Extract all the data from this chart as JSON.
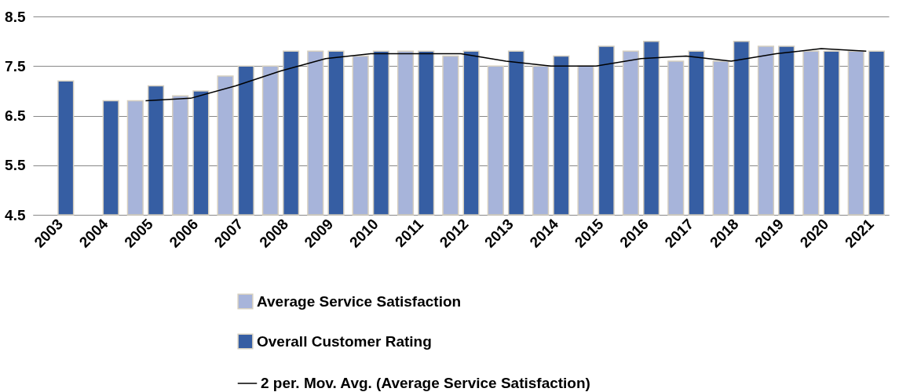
{
  "chart_data": {
    "type": "bar",
    "categories": [
      "2003",
      "2004",
      "2005",
      "2006",
      "2007",
      "2008",
      "2009",
      "2010",
      "2011",
      "2012",
      "2013",
      "2014",
      "2015",
      "2016",
      "2017",
      "2018",
      "2019",
      "2020",
      "2021"
    ],
    "series": [
      {
        "name": "Average Service Satisfaction",
        "color": "#a7b4da",
        "values": [
          null,
          null,
          6.8,
          6.9,
          7.3,
          7.5,
          7.8,
          7.7,
          7.8,
          7.7,
          7.5,
          7.5,
          7.5,
          7.8,
          7.6,
          7.6,
          7.9,
          7.8,
          7.8
        ]
      },
      {
        "name": "Overall Customer Rating",
        "color": "#365ea3",
        "values": [
          7.2,
          6.8,
          7.1,
          7.0,
          7.5,
          7.8,
          7.8,
          7.8,
          7.8,
          7.8,
          7.8,
          7.7,
          7.9,
          8.0,
          7.8,
          8.0,
          7.9,
          7.8,
          7.8
        ]
      },
      {
        "name": "2 per. Mov. Avg. (Average Service Satisfaction)",
        "type": "line",
        "color": "#000000",
        "values": [
          null,
          null,
          6.8,
          6.85,
          7.1,
          7.4,
          7.65,
          7.75,
          7.75,
          7.75,
          7.6,
          7.5,
          7.5,
          7.65,
          7.7,
          7.6,
          7.75,
          7.85,
          7.8
        ]
      }
    ],
    "ylim": [
      4.5,
      8.5
    ],
    "yticks": [
      4.5,
      5.5,
      6.5,
      7.5,
      8.5
    ],
    "grid": "y",
    "legend": "bottom"
  }
}
